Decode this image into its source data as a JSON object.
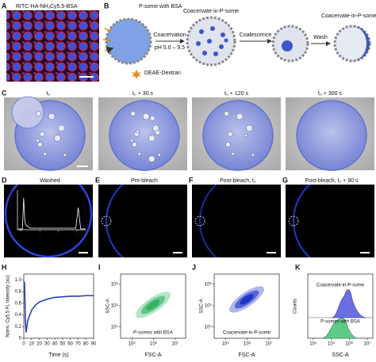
{
  "panels": {
    "A": {
      "letter": "A",
      "label_red": "RITC-HA-NH₂",
      "label_blue": "Cy5.5-BSA"
    },
    "B": {
      "letter": "B",
      "p_some_with_bsa": "P-some with BSA",
      "coacervation": "Coacervation",
      "ph_range": "pH 5.0 – 9.5",
      "deae_dextran": "DEAE-Dextran",
      "coacervate_in_p_some_1": "Coacervate-in-P-some",
      "coalescence": "Coalescence",
      "wash": "Wash",
      "coacervate_in_p_some_2": "Coacervate-in-P-some"
    },
    "C": {
      "letter": "C",
      "timepoints": [
        "t₀",
        "t₀ + 30 s",
        "t₀ + 120 s",
        "t₀ + 300 s"
      ]
    },
    "D": {
      "letter": "D",
      "title": "Washed",
      "inset_ylabel": "Cy 5.5 FL Int. (au)",
      "inset_xlim": [
        -3,
        52
      ],
      "inset_xticks": [
        0,
        15,
        30,
        45
      ]
    },
    "E": {
      "letter": "E",
      "title": "Pre-bleach"
    },
    "F": {
      "letter": "F",
      "title": "Post-bleach, t₀"
    },
    "G": {
      "letter": "G",
      "title": "Post-bleach, t₀ + 90 s"
    },
    "H": {
      "letter": "H",
      "chart": {
        "type": "line",
        "xlabel": "Time (s)",
        "ylabel": "Norm. Cy5.5 FL Intensity (au)",
        "color": "#2a3fb5",
        "x": [
          0,
          1,
          2,
          3,
          5,
          10,
          15,
          20,
          30,
          40,
          50,
          60,
          70,
          80,
          90
        ],
        "values": [
          0.97,
          0.95,
          0.3,
          0.1,
          0.3,
          0.48,
          0.57,
          0.62,
          0.67,
          0.7,
          0.71,
          0.72,
          0.72,
          0.73,
          0.73
        ],
        "xlim": [
          0,
          90
        ],
        "ylim": [
          0,
          1.1
        ],
        "xticks": [
          0,
          10,
          20,
          30,
          40,
          50,
          60,
          70,
          80,
          90
        ],
        "yticks": [
          0,
          {
            "value": 0.2,
            "label": "0.2"
          },
          {
            "value": 0.4,
            "label": "0.4"
          },
          {
            "value": 0.6,
            "label": "0.6"
          },
          {
            "value": 0.8,
            "label": "0.8"
          },
          {
            "value": 1,
            "label": "1.0"
          }
        ]
      }
    },
    "I": {
      "letter": "I",
      "xlabel": "FSC-A",
      "ylabel": "SSC-A",
      "annotation": "P-somes with BSA",
      "log": true,
      "xlim": [
        30000,
        30000000
      ],
      "ylim": [
        3000,
        3000000
      ],
      "xticks": [
        {
          "value": 100000,
          "label": "10⁵"
        },
        {
          "value": 1000000,
          "label": "10⁶"
        },
        {
          "value": 10000000,
          "label": "10⁷"
        }
      ],
      "yticks": [
        {
          "value": 10000,
          "label": "10⁴"
        },
        {
          "value": 100000,
          "label": "10⁵"
        },
        {
          "value": 1000000,
          "label": "10⁶"
        }
      ]
    },
    "J": {
      "letter": "J",
      "xlabel": "FSC-A",
      "ylabel": "SSC-A",
      "annotation": "Coacervate-in-P-some",
      "log": true,
      "xlim": [
        30000,
        30000000
      ],
      "ylim": [
        3000,
        3000000
      ],
      "xticks": [
        {
          "value": 100000,
          "label": "10⁵"
        },
        {
          "value": 1000000,
          "label": "10⁶"
        },
        {
          "value": 10000000,
          "label": "10⁷"
        }
      ],
      "yticks": [
        {
          "value": 10000,
          "label": "10⁴"
        },
        {
          "value": 100000,
          "label": "10⁵"
        },
        {
          "value": 1000000,
          "label": "10⁶"
        }
      ]
    },
    "K": {
      "letter": "K",
      "xlabel": "SSC-A",
      "ylabel": "Counts",
      "label_top": "Coacervate-in-P-some",
      "label_bottom": "P-somes with BSA",
      "log": true,
      "xlim": [
        5000,
        20000000
      ],
      "xticks": [
        {
          "value": 10000,
          "label": "10⁴"
        },
        {
          "value": 100000,
          "label": "10⁵"
        },
        {
          "value": 1000000,
          "label": "10⁶"
        },
        {
          "value": 10000000,
          "label": "10⁷"
        }
      ]
    }
  }
}
